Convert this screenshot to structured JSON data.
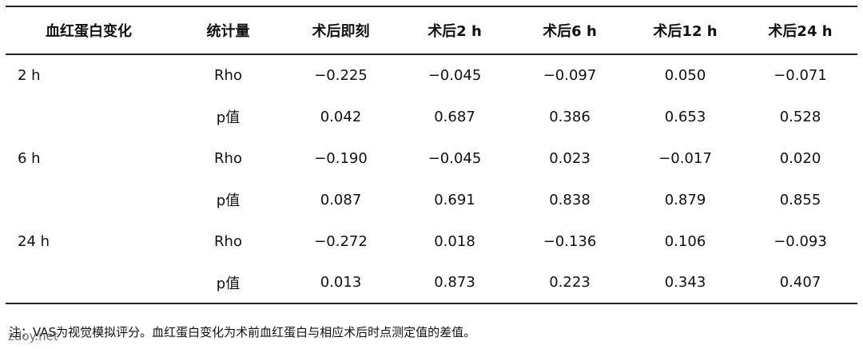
{
  "table": {
    "header": [
      "血红蛋白变化",
      "统计量",
      "术后即刻",
      "术后2 h",
      "术后6 h",
      "术后12 h",
      "术后24 h"
    ],
    "groups": [
      {
        "label": "2 h",
        "rows": [
          [
            "Rho",
            "−0.225",
            "−0.045",
            "−0.097",
            "0.050",
            "−0.071"
          ],
          [
            "p值",
            "0.042",
            "0.687",
            "0.386",
            "0.653",
            "0.528"
          ]
        ]
      },
      {
        "label": "6 h",
        "rows": [
          [
            "Rho",
            "−0.190",
            "−0.045",
            "0.023",
            "−0.017",
            "0.020"
          ],
          [
            "p值",
            "0.087",
            "0.691",
            "0.838",
            "0.879",
            "0.855"
          ]
        ]
      },
      {
        "label": "24 h",
        "rows": [
          [
            "Rho",
            "−0.272",
            "0.018",
            "−0.136",
            "0.106",
            "−0.093"
          ],
          [
            "p值",
            "0.013",
            "0.873",
            "0.223",
            "0.343",
            "0.407"
          ]
        ]
      }
    ]
  },
  "footnote": "注：VAS为视觉模拟评分。血红蛋白变化为术前血红蛋白与相应术后时点测定值的差值。",
  "watermark": "zdoy.net"
}
